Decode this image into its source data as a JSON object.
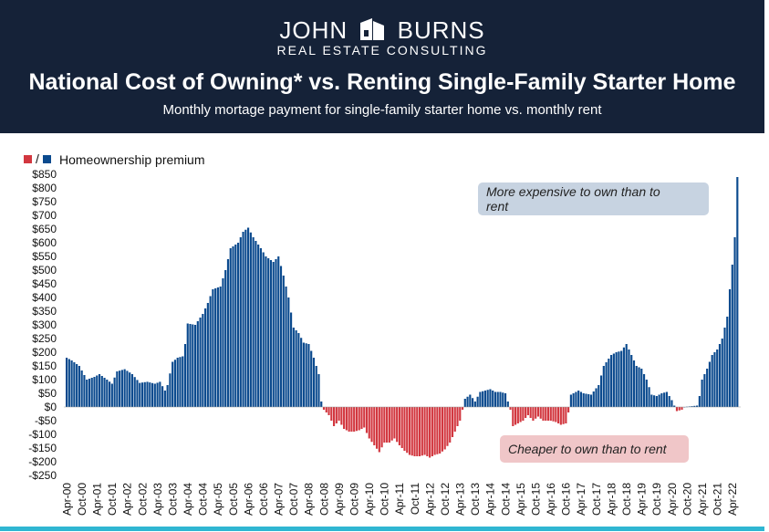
{
  "brand": {
    "name_left": "JOHN",
    "name_right": "BURNS",
    "sub": "REAL ESTATE CONSULTING"
  },
  "header": {
    "title": "National Cost of Owning* vs. Renting Single-Family Starter Home",
    "subtitle": "Monthly mortage payment for single-family starter home vs. monthly rent"
  },
  "colors": {
    "header_bg": "#152238",
    "positive": "#0b4a8e",
    "negative": "#d2373f",
    "accent": "#2fb6d2",
    "anno_pos_bg": "#c7d3e1",
    "anno_neg_bg": "#f0c6c8"
  },
  "chart_data": {
    "type": "bar",
    "legend": {
      "separator": "/",
      "label": "Homeownership premium"
    },
    "ylim": [
      -250,
      850
    ],
    "yticks": [
      850,
      800,
      750,
      700,
      650,
      600,
      550,
      500,
      450,
      400,
      350,
      300,
      250,
      200,
      150,
      100,
      50,
      0,
      -50,
      -100,
      -150,
      -200,
      -250
    ],
    "ytick_labels": [
      "$850",
      "$800",
      "$750",
      "$700",
      "$650",
      "$600",
      "$550",
      "$500",
      "$450",
      "$400",
      "$350",
      "$300",
      "$250",
      "$200",
      "$150",
      "$100",
      "$50",
      "$0",
      "-$50",
      "-$100",
      "-$150",
      "-$200",
      "-$250"
    ],
    "xtick_labels": [
      "Apr-00",
      "Oct-00",
      "Apr-01",
      "Oct-01",
      "Apr-02",
      "Oct-02",
      "Apr-03",
      "Oct-03",
      "Apr-04",
      "Oct-04",
      "Apr-05",
      "Oct-05",
      "Apr-06",
      "Oct-06",
      "Apr-07",
      "Oct-07",
      "Apr-08",
      "Oct-08",
      "Apr-09",
      "Oct-09",
      "Apr-10",
      "Oct-10",
      "Apr-11",
      "Oct-11",
      "Apr-12",
      "Oct-12",
      "Apr-13",
      "Oct-13",
      "Apr-14",
      "Oct-14",
      "Apr-15",
      "Oct-15",
      "Apr-16",
      "Oct-16",
      "Apr-17",
      "Oct-17",
      "Apr-18",
      "Oct-18",
      "Apr-19",
      "Oct-19",
      "Apr-20",
      "Oct-20",
      "Apr-21",
      "Oct-21",
      "Apr-22"
    ],
    "series_anchors": [
      [
        "Apr-00",
        180
      ],
      [
        "Jun-00",
        170
      ],
      [
        "Sep-00",
        150
      ],
      [
        "Dec-00",
        100
      ],
      [
        "Mar-01",
        110
      ],
      [
        "May-01",
        120
      ],
      [
        "Aug-01",
        100
      ],
      [
        "Oct-01",
        85
      ],
      [
        "Dec-01",
        130
      ],
      [
        "Mar-02",
        138
      ],
      [
        "Jun-02",
        120
      ],
      [
        "Sep-02",
        88
      ],
      [
        "Dec-02",
        92
      ],
      [
        "Mar-03",
        85
      ],
      [
        "May-03",
        92
      ],
      [
        "Jul-03",
        60
      ],
      [
        "Aug-03",
        80
      ],
      [
        "Oct-03",
        165
      ],
      [
        "Dec-03",
        180
      ],
      [
        "Feb-04",
        185
      ],
      [
        "Mar-04",
        230
      ],
      [
        "Apr-04",
        305
      ],
      [
        "Jul-04",
        300
      ],
      [
        "Oct-04",
        340
      ],
      [
        "Dec-04",
        380
      ],
      [
        "Feb-05",
        430
      ],
      [
        "May-05",
        440
      ],
      [
        "Jul-05",
        500
      ],
      [
        "Sep-05",
        580
      ],
      [
        "Dec-05",
        600
      ],
      [
        "Feb-06",
        640
      ],
      [
        "Apr-06",
        655
      ],
      [
        "Jun-06",
        620
      ],
      [
        "Sep-06",
        580
      ],
      [
        "Nov-06",
        550
      ],
      [
        "Feb-07",
        530
      ],
      [
        "Apr-07",
        550
      ],
      [
        "Jun-07",
        480
      ],
      [
        "Aug-07",
        400
      ],
      [
        "Oct-07",
        290
      ],
      [
        "Dec-07",
        270
      ],
      [
        "Feb-08",
        235
      ],
      [
        "Apr-08",
        230
      ],
      [
        "Jun-08",
        180
      ],
      [
        "Aug-08",
        120
      ],
      [
        "Sep-08",
        20
      ],
      [
        "Oct-08",
        -10
      ],
      [
        "Dec-08",
        -30
      ],
      [
        "Feb-09",
        -70
      ],
      [
        "Apr-09",
        -50
      ],
      [
        "Jun-09",
        -80
      ],
      [
        "Aug-09",
        -90
      ],
      [
        "Oct-09",
        -90
      ],
      [
        "Dec-09",
        -85
      ],
      [
        "Feb-10",
        -75
      ],
      [
        "Apr-10",
        -115
      ],
      [
        "Jun-10",
        -140
      ],
      [
        "Aug-10",
        -165
      ],
      [
        "Oct-10",
        -130
      ],
      [
        "Dec-10",
        -130
      ],
      [
        "Feb-11",
        -115
      ],
      [
        "Apr-11",
        -140
      ],
      [
        "Jun-11",
        -160
      ],
      [
        "Aug-11",
        -175
      ],
      [
        "Oct-11",
        -180
      ],
      [
        "Dec-11",
        -180
      ],
      [
        "Feb-12",
        -175
      ],
      [
        "Apr-12",
        -185
      ],
      [
        "Jun-12",
        -175
      ],
      [
        "Aug-12",
        -170
      ],
      [
        "Oct-12",
        -155
      ],
      [
        "Dec-12",
        -130
      ],
      [
        "Feb-13",
        -90
      ],
      [
        "Apr-13",
        -50
      ],
      [
        "May-13",
        -10
      ],
      [
        "Jun-13",
        30
      ],
      [
        "Aug-13",
        45
      ],
      [
        "Oct-13",
        20
      ],
      [
        "Dec-13",
        55
      ],
      [
        "Feb-14",
        60
      ],
      [
        "Apr-14",
        65
      ],
      [
        "Jun-14",
        55
      ],
      [
        "Aug-14",
        55
      ],
      [
        "Oct-14",
        50
      ],
      [
        "Dec-14",
        -10
      ],
      [
        "Jan-15",
        -70
      ],
      [
        "Mar-15",
        -60
      ],
      [
        "May-15",
        -50
      ],
      [
        "Jul-15",
        -30
      ],
      [
        "Sep-15",
        -50
      ],
      [
        "Nov-15",
        -35
      ],
      [
        "Jan-16",
        -50
      ],
      [
        "Apr-16",
        -50
      ],
      [
        "Jun-16",
        -55
      ],
      [
        "Aug-16",
        -65
      ],
      [
        "Oct-16",
        -60
      ],
      [
        "Nov-16",
        -20
      ],
      [
        "Dec-16",
        45
      ],
      [
        "Mar-17",
        60
      ],
      [
        "May-17",
        50
      ],
      [
        "Aug-17",
        45
      ],
      [
        "Nov-17",
        80
      ],
      [
        "Jan-18",
        150
      ],
      [
        "Apr-18",
        190
      ],
      [
        "Jun-18",
        200
      ],
      [
        "Aug-18",
        205
      ],
      [
        "Oct-18",
        230
      ],
      [
        "Dec-18",
        190
      ],
      [
        "Feb-19",
        150
      ],
      [
        "Apr-19",
        140
      ],
      [
        "Jun-19",
        100
      ],
      [
        "Aug-19",
        45
      ],
      [
        "Oct-19",
        40
      ],
      [
        "Dec-19",
        50
      ],
      [
        "Feb-20",
        55
      ],
      [
        "Apr-20",
        25
      ],
      [
        "Jun-20",
        -15
      ],
      [
        "Aug-20",
        -10
      ],
      [
        "Sep-20",
        0
      ],
      [
        "Feb-21",
        5
      ],
      [
        "Mar-21",
        40
      ],
      [
        "Apr-21",
        100
      ],
      [
        "Jun-21",
        140
      ],
      [
        "Aug-21",
        190
      ],
      [
        "Oct-21",
        210
      ],
      [
        "Dec-21",
        250
      ],
      [
        "Feb-22",
        330
      ],
      [
        "Mar-22",
        430
      ],
      [
        "Apr-22",
        520
      ],
      [
        "May-22",
        620
      ],
      [
        "Jun-22",
        840
      ]
    ],
    "annotations": {
      "positive": "More expensive to own than to rent",
      "positive_line1": "More expensive to own than to",
      "positive_line2": "rent",
      "negative": "Cheaper to own than to rent"
    }
  }
}
